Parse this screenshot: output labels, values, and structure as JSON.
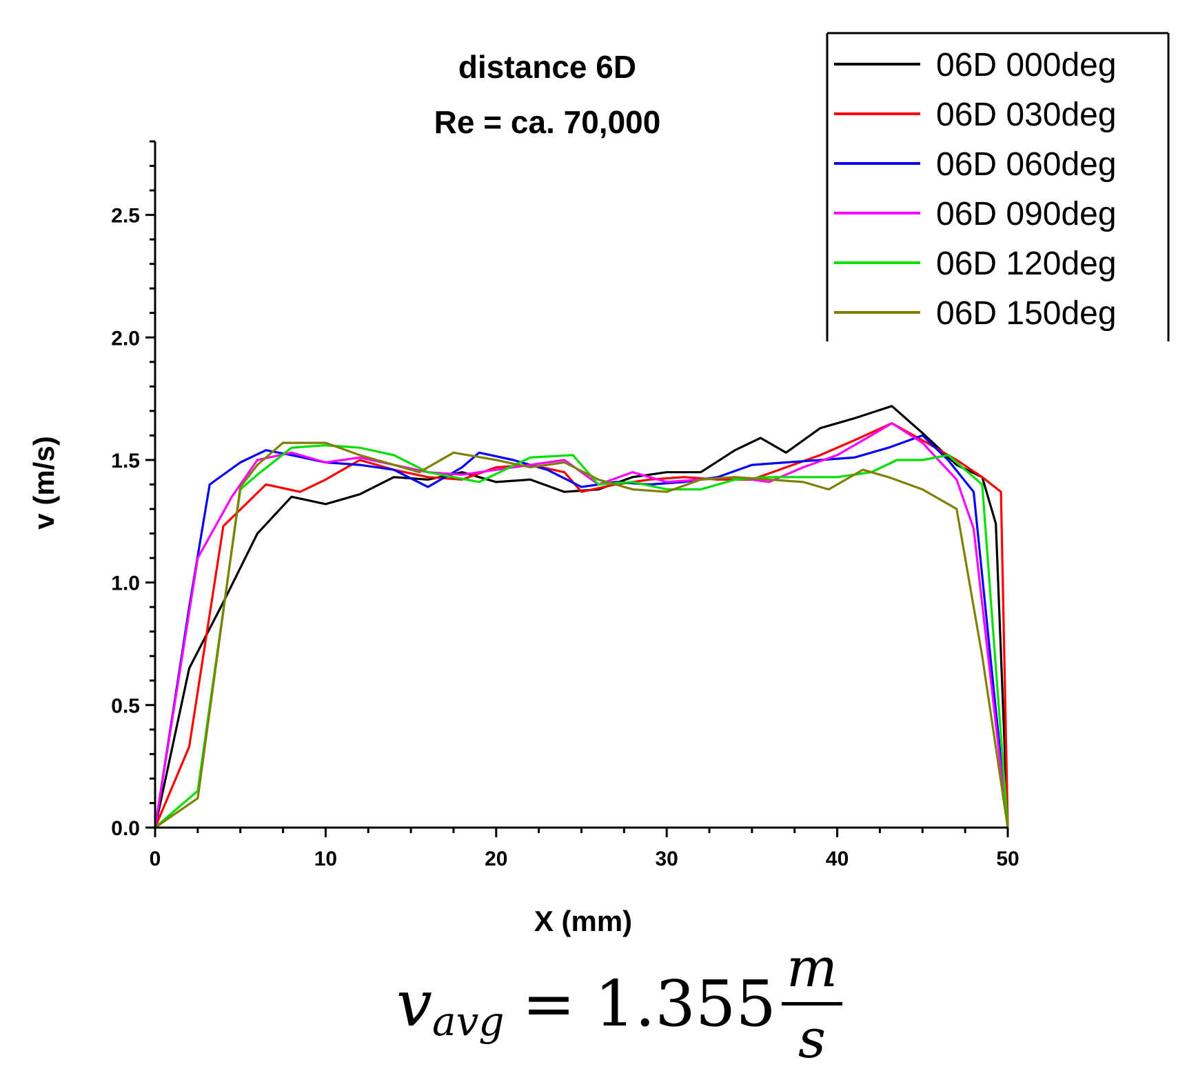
{
  "chart_data": {
    "type": "line",
    "title": [
      "distance 6D",
      "Re = ca. 70,000"
    ],
    "xlabel": "X (mm)",
    "ylabel": "v (m/s)",
    "xlim": [
      0,
      50
    ],
    "ylim": [
      0,
      2.8
    ],
    "xticks": [
      0,
      10,
      20,
      30,
      40,
      50
    ],
    "xtick_labels": [
      "0",
      "10",
      "20",
      "30",
      "40",
      "50"
    ],
    "yticks": [
      0.0,
      0.5,
      1.0,
      1.5,
      2.0,
      2.5
    ],
    "ytick_labels": [
      "0.0",
      "0.5",
      "1.0",
      "1.5",
      "2.0",
      "2.5"
    ],
    "grid": false,
    "legend_position": "top-right",
    "series": [
      {
        "name": "06D 000deg",
        "color": "#000000",
        "x": [
          0,
          2,
          4,
          6,
          8,
          10,
          12,
          14,
          16,
          18,
          20,
          22,
          24,
          26,
          28,
          30,
          32,
          34,
          35.5,
          37,
          39,
          41,
          43.2,
          45,
          47,
          48.5,
          49.3,
          50
        ],
        "y": [
          0,
          0.65,
          0.92,
          1.2,
          1.35,
          1.32,
          1.36,
          1.43,
          1.42,
          1.45,
          1.41,
          1.42,
          1.37,
          1.38,
          1.43,
          1.45,
          1.45,
          1.54,
          1.59,
          1.53,
          1.63,
          1.67,
          1.72,
          1.61,
          1.48,
          1.43,
          1.24,
          0
        ]
      },
      {
        "name": "06D 030deg",
        "color": "#ff0000",
        "x": [
          0,
          2,
          4,
          6.5,
          8.5,
          10,
          12,
          14,
          16,
          18,
          20,
          22,
          24,
          25,
          27,
          29,
          31,
          33,
          35,
          37,
          39,
          41,
          43.2,
          45,
          47,
          48.5,
          49.6,
          50
        ],
        "y": [
          0,
          0.33,
          1.23,
          1.4,
          1.37,
          1.42,
          1.5,
          1.46,
          1.43,
          1.42,
          1.47,
          1.48,
          1.45,
          1.37,
          1.4,
          1.42,
          1.43,
          1.42,
          1.42,
          1.47,
          1.52,
          1.58,
          1.65,
          1.58,
          1.5,
          1.43,
          1.37,
          0
        ]
      },
      {
        "name": "06D 060deg",
        "color": "#0000ff",
        "x": [
          0,
          2,
          3.2,
          5,
          6.5,
          8,
          10,
          12,
          14,
          16,
          18,
          19,
          21,
          23,
          25,
          27,
          29,
          31,
          33,
          35,
          37,
          39,
          41,
          43,
          45,
          46.5,
          48,
          50
        ],
        "y": [
          0,
          0.9,
          1.4,
          1.49,
          1.54,
          1.52,
          1.49,
          1.48,
          1.46,
          1.39,
          1.47,
          1.53,
          1.5,
          1.46,
          1.39,
          1.41,
          1.4,
          1.41,
          1.43,
          1.48,
          1.49,
          1.5,
          1.51,
          1.55,
          1.6,
          1.5,
          1.37,
          0
        ]
      },
      {
        "name": "06D 090deg",
        "color": "#ff00ff",
        "x": [
          0,
          2.5,
          4.5,
          6,
          8,
          10,
          12,
          14,
          16,
          18,
          20,
          22,
          24,
          26,
          28,
          30,
          32,
          34,
          36,
          38,
          40,
          42,
          43.2,
          45,
          47,
          48,
          49.5,
          50
        ],
        "y": [
          0,
          1.1,
          1.35,
          1.5,
          1.53,
          1.49,
          1.51,
          1.48,
          1.45,
          1.44,
          1.46,
          1.48,
          1.5,
          1.4,
          1.45,
          1.41,
          1.42,
          1.43,
          1.41,
          1.47,
          1.52,
          1.6,
          1.65,
          1.57,
          1.42,
          1.22,
          0.3,
          0
        ]
      },
      {
        "name": "06D 120deg",
        "color": "#00e000",
        "x": [
          0,
          2.5,
          5,
          6,
          8,
          10,
          12,
          14,
          16,
          19,
          22,
          24.5,
          26,
          28,
          30,
          32,
          34,
          36,
          38,
          40,
          42,
          43.5,
          45,
          46.5,
          48,
          48.5,
          50
        ],
        "y": [
          0,
          0.15,
          1.38,
          1.44,
          1.55,
          1.56,
          1.55,
          1.52,
          1.45,
          1.41,
          1.51,
          1.52,
          1.4,
          1.41,
          1.38,
          1.38,
          1.42,
          1.43,
          1.43,
          1.43,
          1.45,
          1.5,
          1.5,
          1.52,
          1.43,
          1.4,
          0
        ]
      },
      {
        "name": "06D 150deg",
        "color": "#808000",
        "x": [
          0,
          2.5,
          5,
          6,
          7.5,
          10,
          12,
          14,
          15.5,
          17.5,
          20,
          22,
          24,
          26,
          28,
          30,
          32,
          34,
          36,
          38,
          39.5,
          41.5,
          43,
          45,
          47,
          48.5,
          50
        ],
        "y": [
          0,
          0.12,
          1.39,
          1.48,
          1.57,
          1.57,
          1.52,
          1.48,
          1.45,
          1.53,
          1.5,
          1.47,
          1.49,
          1.42,
          1.38,
          1.37,
          1.42,
          1.43,
          1.42,
          1.41,
          1.38,
          1.46,
          1.43,
          1.38,
          1.3,
          0.7,
          0
        ]
      }
    ]
  },
  "formula": {
    "variable": "v",
    "subscript": "avg",
    "equals": "=",
    "value": "1.355",
    "unit_numerator": "m",
    "unit_denominator": "s"
  }
}
